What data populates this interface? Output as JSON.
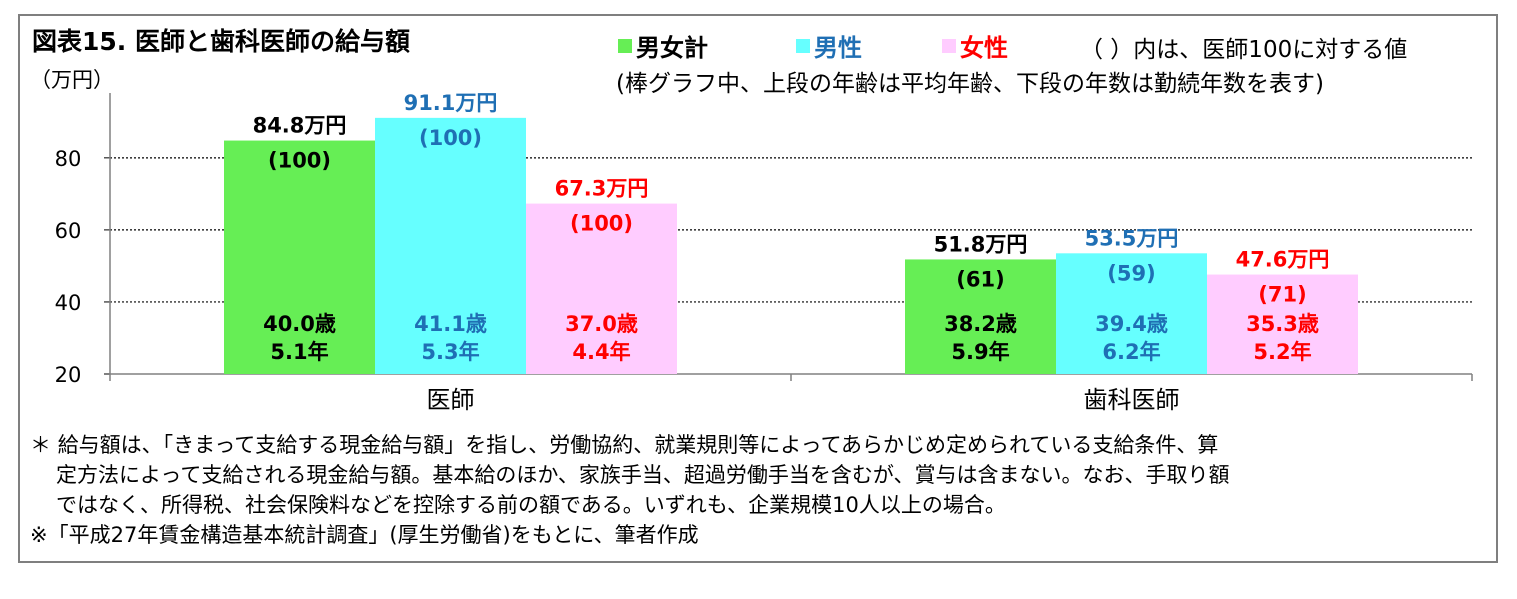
{
  "title": "図表15. 医師と歯科医師の給与額",
  "unit": "（万円）",
  "legend": [
    {
      "label": "男女計",
      "color": "#66ee55",
      "text_color": "#000000"
    },
    {
      "label": "男性",
      "color": "#66ffff",
      "text_color": "#1f6fb4"
    },
    {
      "label": "女性",
      "color": "#ffccff",
      "text_color": "#ff0000"
    }
  ],
  "notes": {
    "line1": "（ ）内は、医師100に対する値",
    "line2": "(棒グラフ中、上段の年齢は平均年齢、下段の年数は勤続年数を表す)"
  },
  "chart_data": {
    "type": "bar",
    "categories": [
      "医師",
      "歯科医師"
    ],
    "ylim": [
      20,
      98
    ],
    "yticks": [
      20,
      40,
      60,
      80
    ],
    "grid": true,
    "series": [
      {
        "name": "男女計",
        "color": "#66ee55",
        "label_color": "#000000",
        "values": [
          84.8,
          51.8
        ],
        "value_labels": [
          "84.8万円",
          "51.8万円"
        ],
        "index_labels": [
          "(100)",
          "(61)"
        ],
        "age_labels": [
          "40.0歳",
          "38.2歳"
        ],
        "tenure_labels": [
          "5.1年",
          "5.9年"
        ]
      },
      {
        "name": "男性",
        "color": "#66ffff",
        "label_color": "#1f6fb4",
        "values": [
          91.1,
          53.5
        ],
        "value_labels": [
          "91.1万円",
          "53.5万円"
        ],
        "index_labels": [
          "(100)",
          "(59)"
        ],
        "age_labels": [
          "41.1歳",
          "39.4歳"
        ],
        "tenure_labels": [
          "5.3年",
          "6.2年"
        ]
      },
      {
        "name": "女性",
        "color": "#ffccff",
        "label_color": "#ff0000",
        "values": [
          67.3,
          47.6
        ],
        "value_labels": [
          "67.3万円",
          "47.6万円"
        ],
        "index_labels": [
          "(100)",
          "(71)"
        ],
        "age_labels": [
          "37.0歳",
          "35.3歳"
        ],
        "tenure_labels": [
          "4.4年",
          "5.2年"
        ]
      }
    ]
  },
  "footnotes": {
    "line1": "＊ 給与額は、「きまって支給する現金給与額」を指し、労働協約、就業規則等によってあらかじめ定められている支給条件、算",
    "line2": "定方法によって支給される現金給与額。基本給のほか、家族手当、超過労働手当を含むが、賞与は含まない。なお、手取り額",
    "line3": "ではなく、所得税、社会保険料などを控除する前の額である。いずれも、企業規模10人以上の場合。",
    "line4": "※「平成27年賃金構造基本統計調査」(厚生労働省)をもとに、筆者作成"
  }
}
